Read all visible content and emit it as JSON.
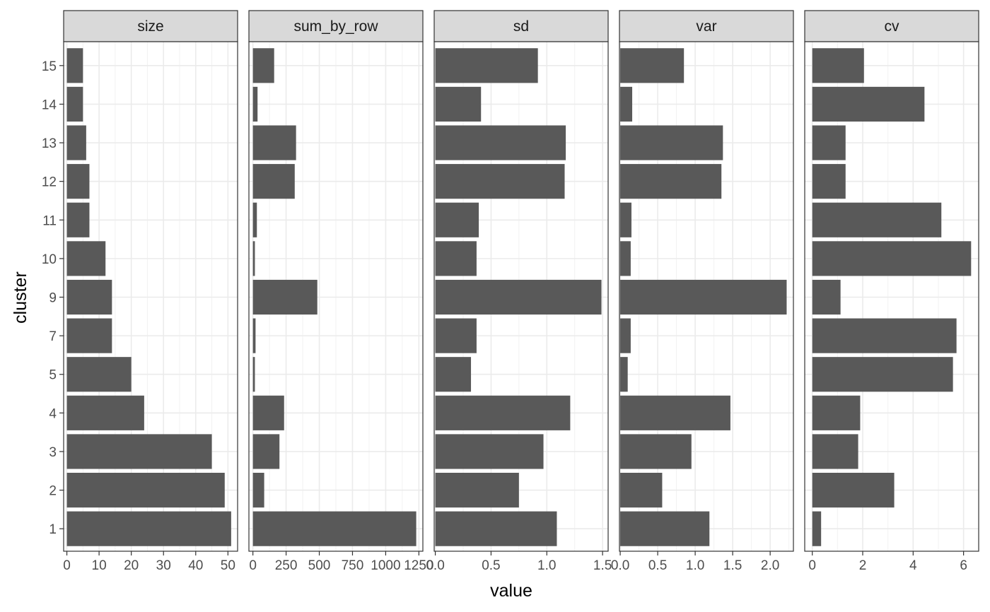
{
  "chart_data": {
    "type": "bar",
    "orientation": "horizontal",
    "facet": "wrap",
    "xlabel": "value",
    "ylabel": "cluster",
    "categories": [
      "1",
      "2",
      "3",
      "4",
      "5",
      "7",
      "9",
      "10",
      "11",
      "12",
      "13",
      "14",
      "15"
    ],
    "bar_color": "#595959",
    "strip_color": "#d9d9d9",
    "grid": true,
    "panels": [
      {
        "name": "size",
        "values": [
          51,
          49,
          45,
          24,
          20,
          14,
          14,
          12,
          7,
          7,
          6,
          5,
          5
        ],
        "xlim": [
          -1,
          53
        ],
        "ticks": [
          0,
          10,
          20,
          30,
          40,
          50
        ],
        "tick_labels": [
          "0",
          "10",
          "20",
          "30",
          "40",
          "50"
        ]
      },
      {
        "name": "sum_by_row",
        "values": [
          1230,
          85,
          200,
          235,
          15,
          20,
          485,
          15,
          30,
          315,
          325,
          35,
          160
        ],
        "xlim": [
          -30,
          1280
        ],
        "ticks": [
          0,
          250,
          500,
          750,
          1000,
          1250
        ],
        "tick_labels": [
          "0",
          "250",
          "500",
          "750",
          "1000",
          "1250"
        ]
      },
      {
        "name": "sd",
        "values": [
          1.09,
          0.75,
          0.97,
          1.21,
          0.32,
          0.37,
          1.49,
          0.37,
          0.39,
          1.16,
          1.17,
          0.41,
          0.92
        ],
        "xlim": [
          -0.01,
          1.55
        ],
        "ticks": [
          0.0,
          0.5,
          1.0,
          1.5
        ],
        "tick_labels": [
          "0.0",
          "0.5",
          "1.0",
          "1.5"
        ]
      },
      {
        "name": "var",
        "values": [
          1.19,
          0.56,
          0.95,
          1.47,
          0.1,
          0.14,
          2.22,
          0.14,
          0.15,
          1.35,
          1.37,
          0.16,
          0.85
        ],
        "xlim": [
          -0.01,
          2.31
        ],
        "ticks": [
          0.0,
          0.5,
          1.0,
          1.5,
          2.0
        ],
        "tick_labels": [
          "0.0",
          "0.5",
          "1.0",
          "1.5",
          "2.0"
        ]
      },
      {
        "name": "cv",
        "values": [
          0.35,
          3.25,
          1.82,
          1.9,
          5.58,
          5.72,
          1.12,
          6.3,
          5.12,
          1.32,
          1.32,
          4.45,
          2.05
        ],
        "xlim": [
          -0.3,
          6.6
        ],
        "ticks": [
          0,
          2,
          4,
          6
        ],
        "tick_labels": [
          "0",
          "2",
          "4",
          "6"
        ]
      }
    ]
  }
}
